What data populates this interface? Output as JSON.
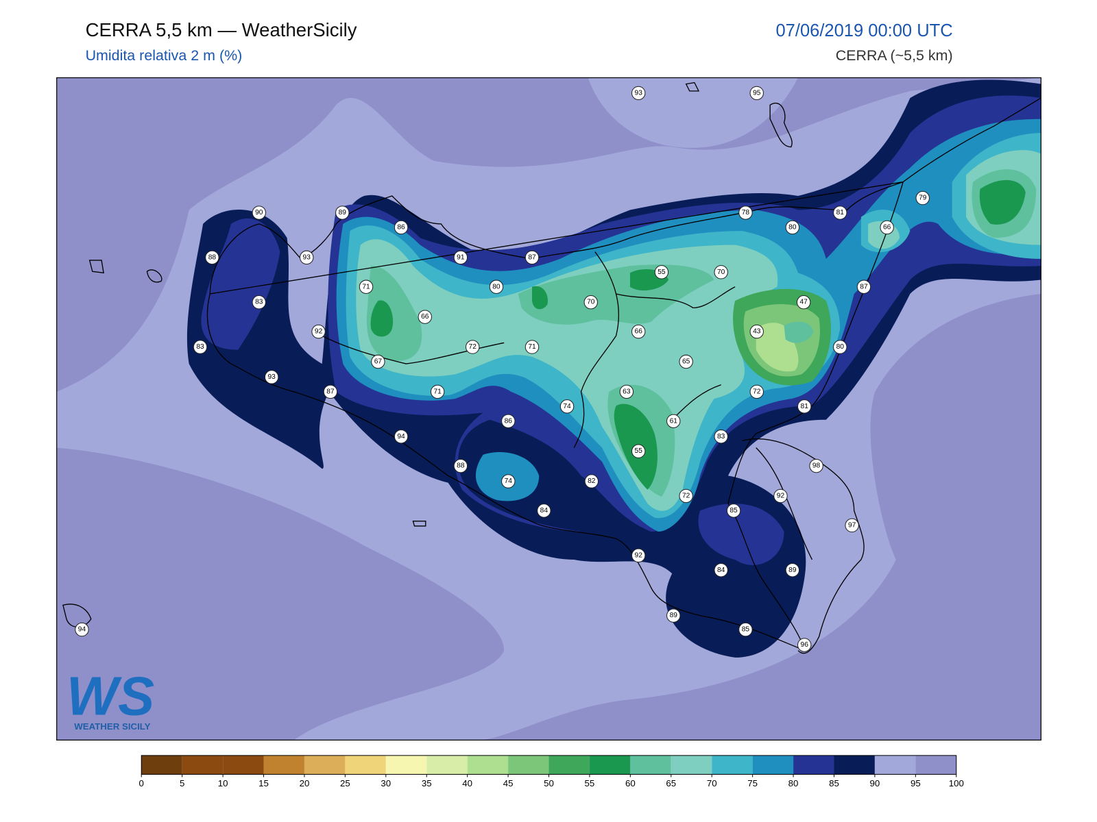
{
  "header": {
    "title": "CERRA 5,5 km — WeatherSicily",
    "subtitle": "Umidita relativa 2 m (%)",
    "datetime": "07/06/2019 00:00 UTC",
    "model": "CERRA (~5,5 km)"
  },
  "stations": [
    93,
    95,
    90,
    89,
    86,
    78,
    81,
    79,
    80,
    66,
    88,
    93,
    91,
    87,
    55,
    70,
    71,
    80,
    83,
    70,
    47,
    87,
    66,
    92,
    66,
    43,
    83,
    72,
    71,
    80,
    67,
    65,
    93,
    87,
    71,
    63,
    72,
    74,
    81,
    86,
    61,
    94,
    83,
    55,
    88,
    98,
    74,
    82,
    72,
    92,
    84,
    85,
    97,
    92,
    84,
    89,
    89,
    85,
    96,
    94
  ],
  "colorbar": {
    "ticks": [
      0,
      5,
      10,
      15,
      20,
      25,
      30,
      35,
      40,
      45,
      50,
      55,
      60,
      65,
      70,
      75,
      80,
      85,
      90,
      95,
      100
    ],
    "colors": [
      "#6e3f0d",
      "#8b4a10",
      "#8b4a10",
      "#c0822f",
      "#dcae5a",
      "#f0d47a",
      "#f6f6b0",
      "#d8eea8",
      "#aede8f",
      "#7cc67a",
      "#3fa75a",
      "#1a9850",
      "#5fc09e",
      "#7ecfc0",
      "#3eb5c8",
      "#1f8fc0",
      "#253494",
      "#081d58",
      "#a3a8db",
      "#8f8fc9"
    ]
  },
  "logo": {
    "mark": "WS",
    "text": "WEATHER SICILY"
  }
}
